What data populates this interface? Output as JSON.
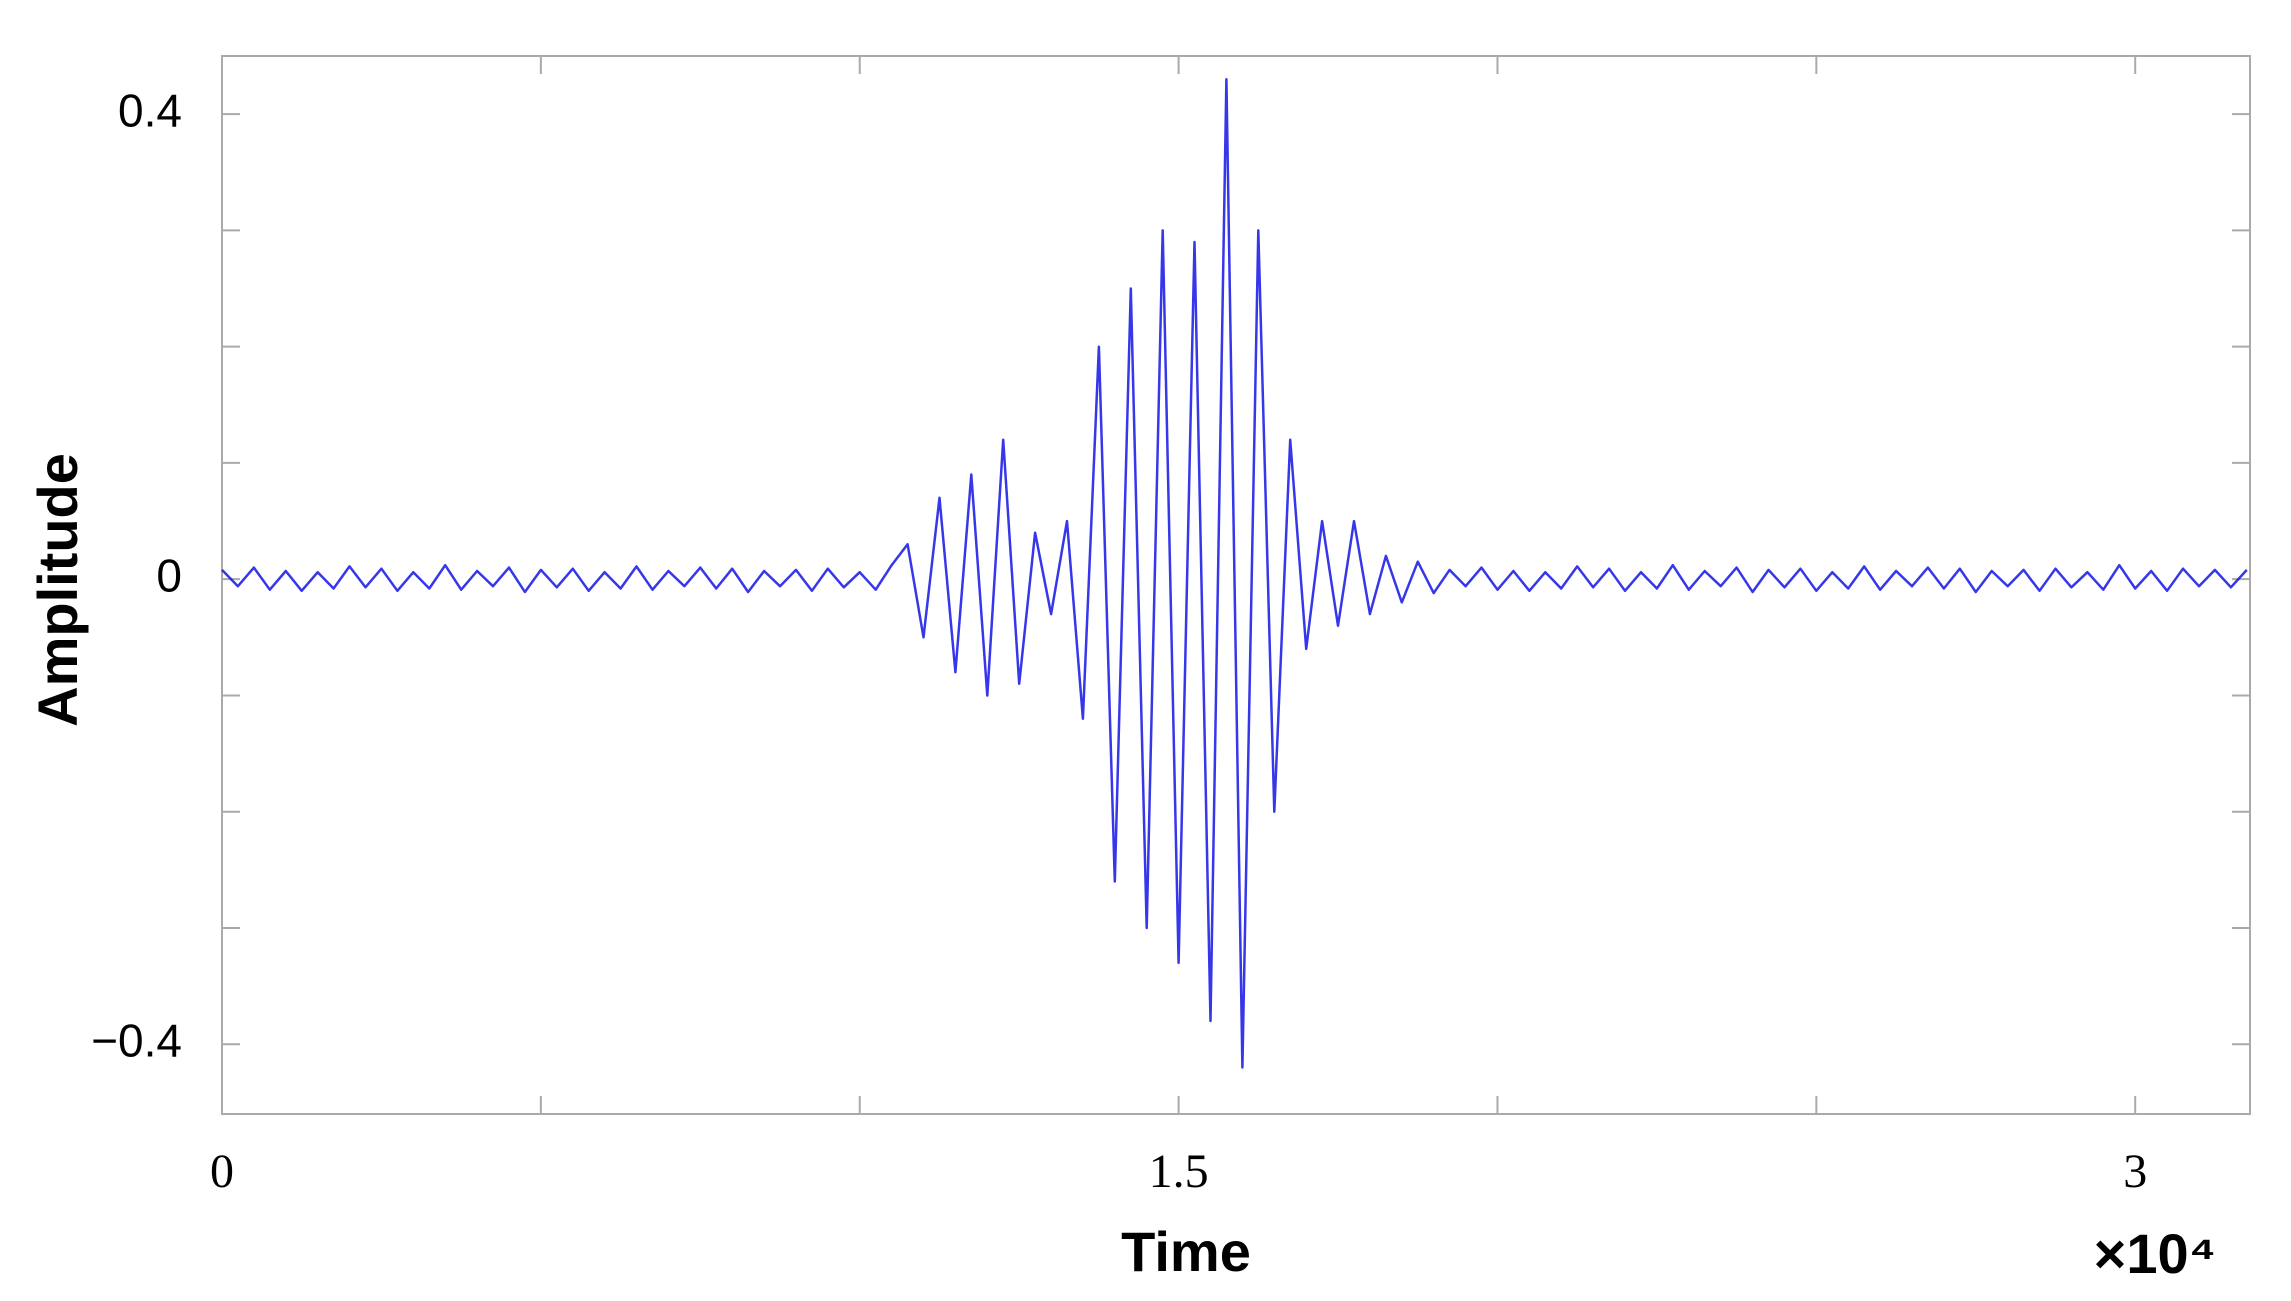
{
  "chart_data": {
    "type": "line",
    "xlabel": "Time",
    "ylabel": "Amplitude",
    "x_scale_label": "×10⁴",
    "color": "#1414e6",
    "xlim": [
      0,
      31800
    ],
    "ylim": [
      -0.46,
      0.45
    ],
    "xticks": [
      {
        "value": 0,
        "label": "0"
      },
      {
        "value": 5000,
        "label": null
      },
      {
        "value": 10000,
        "label": null
      },
      {
        "value": 15000,
        "label": "1.5"
      },
      {
        "value": 20000,
        "label": null
      },
      {
        "value": 25000,
        "label": null
      },
      {
        "value": 30000,
        "label": "3"
      }
    ],
    "yticks": [
      {
        "value": -0.4,
        "label": "−0.4"
      },
      {
        "value": -0.3,
        "label": null
      },
      {
        "value": -0.2,
        "label": null
      },
      {
        "value": -0.1,
        "label": null
      },
      0,
      {
        "value": 0.1,
        "label": null
      },
      {
        "value": 0.2,
        "label": null
      },
      {
        "value": 0.3,
        "label": null
      },
      0.4
    ],
    "x": [
      0,
      250,
      500,
      750,
      1000,
      1250,
      1500,
      1750,
      2000,
      2250,
      2500,
      2750,
      3000,
      3250,
      3500,
      3750,
      4000,
      4250,
      4500,
      4750,
      5000,
      5250,
      5500,
      5750,
      6000,
      6250,
      6500,
      6750,
      7000,
      7250,
      7500,
      7750,
      8000,
      8250,
      8500,
      8750,
      9000,
      9250,
      9500,
      9750,
      10000,
      10250,
      10500,
      10750,
      11000,
      11250,
      11500,
      11750,
      12000,
      12250,
      12500,
      12750,
      13000,
      13250,
      13500,
      13750,
      14000,
      14250,
      14500,
      14750,
      15000,
      15250,
      15500,
      15750,
      16000,
      16250,
      16500,
      16750,
      17000,
      17250,
      17500,
      17750,
      18000,
      18250,
      18500,
      18750,
      19000,
      19250,
      19500,
      19750,
      20000,
      20250,
      20500,
      20750,
      21000,
      21250,
      21500,
      21750,
      22000,
      22250,
      22500,
      22750,
      23000,
      23250,
      23500,
      23750,
      24000,
      24250,
      24500,
      24750,
      25000,
      25250,
      25500,
      25750,
      26000,
      26250,
      26500,
      26750,
      27000,
      27250,
      27500,
      27750,
      28000,
      28250,
      28500,
      28750,
      29000,
      29250,
      29500,
      29750,
      30000,
      30250,
      30500,
      30750,
      31000,
      31250,
      31500,
      31750
    ],
    "values": [
      0.008,
      -0.006,
      0.01,
      -0.009,
      0.007,
      -0.01,
      0.006,
      -0.008,
      0.011,
      -0.007,
      0.009,
      -0.01,
      0.006,
      -0.008,
      0.012,
      -0.009,
      0.007,
      -0.006,
      0.01,
      -0.011,
      0.008,
      -0.007,
      0.009,
      -0.01,
      0.006,
      -0.008,
      0.011,
      -0.009,
      0.007,
      -0.006,
      0.01,
      -0.008,
      0.009,
      -0.011,
      0.007,
      -0.006,
      0.008,
      -0.01,
      0.009,
      -0.007,
      0.006,
      -0.009,
      0.012,
      0.03,
      -0.05,
      0.07,
      -0.08,
      0.09,
      -0.1,
      0.12,
      -0.09,
      0.04,
      -0.03,
      0.05,
      -0.12,
      0.2,
      -0.26,
      0.25,
      -0.3,
      0.3,
      -0.33,
      0.29,
      -0.38,
      0.43,
      -0.42,
      0.3,
      -0.2,
      0.12,
      -0.06,
      0.05,
      -0.04,
      0.05,
      -0.03,
      0.02,
      -0.02,
      0.015,
      -0.012,
      0.008,
      -0.006,
      0.01,
      -0.009,
      0.007,
      -0.01,
      0.006,
      -0.008,
      0.011,
      -0.007,
      0.009,
      -0.01,
      0.006,
      -0.008,
      0.012,
      -0.009,
      0.007,
      -0.006,
      0.01,
      -0.011,
      0.008,
      -0.007,
      0.009,
      -0.01,
      0.006,
      -0.008,
      0.011,
      -0.009,
      0.007,
      -0.006,
      0.01,
      -0.008,
      0.009,
      -0.011,
      0.007,
      -0.006,
      0.008,
      -0.01,
      0.009,
      -0.007,
      0.006,
      -0.009,
      0.012,
      -0.008,
      0.007,
      -0.01,
      0.009,
      -0.006,
      0.008,
      -0.007,
      0.008
    ]
  }
}
